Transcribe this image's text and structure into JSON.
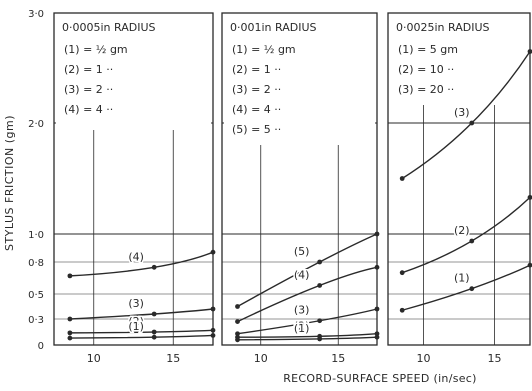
{
  "figure": {
    "ylabel": "STYLUS FRICTION  (gm)",
    "xlabel": "RECORD-SURFACE SPEED   (in/sec)",
    "y_ticks": [
      {
        "v": 0,
        "label": "0"
      },
      {
        "v": 0.3,
        "label": "0·3"
      },
      {
        "v": 0.5,
        "label": "0·5"
      },
      {
        "v": 0.8,
        "label": "0·8"
      },
      {
        "v": 1.0,
        "label": "1·0"
      },
      {
        "v": 2.0,
        "label": "2·0"
      },
      {
        "v": 3.0,
        "label": "3·0"
      }
    ],
    "x_ticks": [
      {
        "v": 10,
        "label": "10"
      },
      {
        "v": 15,
        "label": "15"
      }
    ]
  },
  "chart_data": [
    {
      "type": "line",
      "title": "0·0005in RADIUS",
      "legend": [
        "(1) = ½ gm",
        "(2) = 1  ··",
        "(3) = 2  ··",
        "(4) = 4  ··"
      ],
      "xlim": [
        7.5,
        17.5
      ],
      "ylim": [
        0,
        3.0
      ],
      "series": [
        {
          "name": "(4)",
          "x": [
            8.5,
            13.8,
            17.5
          ],
          "y": [
            0.67,
            0.75,
            0.87
          ]
        },
        {
          "name": "(3)",
          "x": [
            8.5,
            13.8,
            17.5
          ],
          "y": [
            0.3,
            0.34,
            0.38
          ]
        },
        {
          "name": "(2)",
          "x": [
            8.5,
            13.8,
            17.5
          ],
          "y": [
            0.14,
            0.15,
            0.17
          ]
        },
        {
          "name": "(1)",
          "x": [
            8.5,
            13.8,
            17.5
          ],
          "y": [
            0.08,
            0.09,
            0.11
          ]
        }
      ]
    },
    {
      "type": "line",
      "title": "0·001in RADIUS",
      "legend": [
        "(1) = ½ gm",
        "(2) = 1  ··",
        "(3) = 2  ··",
        "(4) = 4  ··",
        "(5) = 5  ··"
      ],
      "xlim": [
        7.5,
        17.5
      ],
      "ylim": [
        0,
        3.0
      ],
      "series": [
        {
          "name": "(5)",
          "x": [
            8.5,
            13.8,
            17.5
          ],
          "y": [
            0.4,
            0.8,
            1.0
          ]
        },
        {
          "name": "(4)",
          "x": [
            8.5,
            13.8,
            17.5
          ],
          "y": [
            0.27,
            0.58,
            0.75
          ]
        },
        {
          "name": "(3)",
          "x": [
            8.5,
            13.8,
            17.5
          ],
          "y": [
            0.13,
            0.28,
            0.38
          ]
        },
        {
          "name": "(2)",
          "x": [
            8.5,
            13.8,
            17.5
          ],
          "y": [
            0.09,
            0.1,
            0.13
          ]
        },
        {
          "name": "(1)",
          "x": [
            8.5,
            13.8,
            17.5
          ],
          "y": [
            0.06,
            0.07,
            0.09
          ]
        }
      ]
    },
    {
      "type": "line",
      "title": "0·0025in RADIUS",
      "legend": [
        "(1) = 5 gm",
        "(2) = 10  ··",
        "(3) = 20  ··"
      ],
      "xlim": [
        7.5,
        17.5
      ],
      "ylim": [
        0,
        3.0
      ],
      "series": [
        {
          "name": "(3)",
          "x": [
            8.5,
            13.4,
            17.5
          ],
          "y": [
            1.5,
            2.0,
            2.65
          ]
        },
        {
          "name": "(2)",
          "x": [
            8.5,
            13.4,
            17.5
          ],
          "y": [
            0.7,
            0.95,
            1.33
          ]
        },
        {
          "name": "(1)",
          "x": [
            8.5,
            13.4,
            17.5
          ],
          "y": [
            0.37,
            0.55,
            0.77
          ]
        }
      ]
    }
  ]
}
